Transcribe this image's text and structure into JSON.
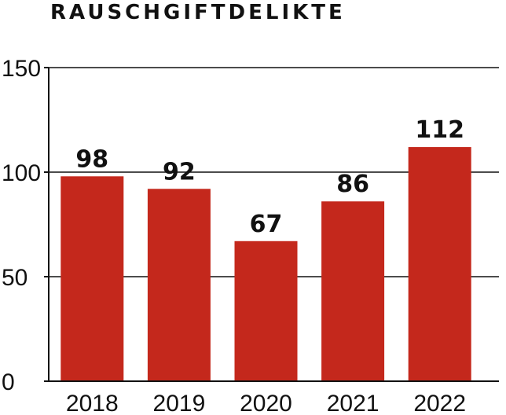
{
  "chart_data": {
    "type": "bar",
    "title": "RAUSCHGIFTDELIKTE",
    "categories": [
      "2018",
      "2019",
      "2020",
      "2021",
      "2022"
    ],
    "values": [
      98,
      92,
      67,
      86,
      112
    ],
    "data_labels": [
      "98",
      "92",
      "67",
      "86",
      "112"
    ],
    "yticks": [
      0,
      50,
      100,
      150
    ],
    "ylim": [
      0,
      150
    ],
    "xlabel": "",
    "ylabel": "",
    "grid": true,
    "bar_color": "#c4281c",
    "axis_color": "#111111"
  }
}
